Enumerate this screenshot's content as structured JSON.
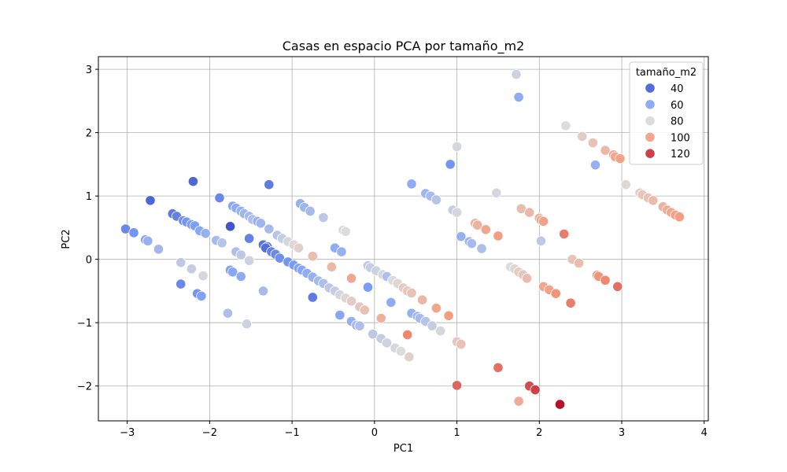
{
  "chart_data": {
    "type": "scatter",
    "title": "Casas en espacio PCA por tamaño_m2",
    "xlabel": "PC1",
    "ylabel": "PC2",
    "xlim": [
      -3.35,
      4.05
    ],
    "ylim": [
      -2.55,
      3.2
    ],
    "xticks": [
      -3,
      -2,
      -1,
      0,
      1,
      2,
      3,
      4
    ],
    "yticks": [
      -2,
      -1,
      0,
      1,
      2,
      3
    ],
    "xtick_labels": [
      "−3",
      "−2",
      "−1",
      "0",
      "1",
      "2",
      "3",
      "4"
    ],
    "ytick_labels": [
      "−2",
      "−1",
      "0",
      "1",
      "2",
      "3"
    ],
    "grid": true,
    "hue_variable": "tamaño_m2",
    "colormap": "coolwarm",
    "hue_range": [
      30,
      130
    ],
    "legend": {
      "title": "tamaño_m2",
      "placement": "upper right",
      "entries": [
        {
          "label": "40",
          "value": 40
        },
        {
          "label": "60",
          "value": 60
        },
        {
          "label": "80",
          "value": 80
        },
        {
          "label": "100",
          "value": 100
        },
        {
          "label": "120",
          "value": 120
        }
      ]
    },
    "points": [
      {
        "x": -3.02,
        "y": 0.48,
        "size_m2": 48
      },
      {
        "x": -2.92,
        "y": 0.42,
        "size_m2": 52
      },
      {
        "x": -2.78,
        "y": 0.31,
        "size_m2": 58
      },
      {
        "x": -2.75,
        "y": 0.29,
        "size_m2": 62
      },
      {
        "x": -2.72,
        "y": 0.93,
        "size_m2": 38
      },
      {
        "x": -2.62,
        "y": 0.16,
        "size_m2": 65
      },
      {
        "x": -2.45,
        "y": 0.72,
        "size_m2": 44
      },
      {
        "x": -2.4,
        "y": 0.68,
        "size_m2": 46
      },
      {
        "x": -2.32,
        "y": 0.61,
        "size_m2": 50
      },
      {
        "x": -2.28,
        "y": 0.59,
        "size_m2": 52
      },
      {
        "x": -2.22,
        "y": 0.55,
        "size_m2": 54
      },
      {
        "x": -2.18,
        "y": 0.53,
        "size_m2": 55
      },
      {
        "x": -2.2,
        "y": 1.23,
        "size_m2": 38
      },
      {
        "x": -2.12,
        "y": 0.45,
        "size_m2": 58
      },
      {
        "x": -2.05,
        "y": 0.41,
        "size_m2": 62
      },
      {
        "x": -2.35,
        "y": -0.05,
        "size_m2": 72
      },
      {
        "x": -2.22,
        "y": -0.15,
        "size_m2": 74
      },
      {
        "x": -2.08,
        "y": -0.26,
        "size_m2": 78
      },
      {
        "x": -2.35,
        "y": -0.39,
        "size_m2": 48
      },
      {
        "x": -2.15,
        "y": -0.54,
        "size_m2": 52
      },
      {
        "x": -2.1,
        "y": -0.58,
        "size_m2": 56
      },
      {
        "x": -1.92,
        "y": 0.3,
        "size_m2": 66
      },
      {
        "x": -1.88,
        "y": 0.97,
        "size_m2": 48
      },
      {
        "x": -1.85,
        "y": 0.26,
        "size_m2": 70
      },
      {
        "x": -1.75,
        "y": 0.52,
        "size_m2": 33
      },
      {
        "x": -1.72,
        "y": 0.84,
        "size_m2": 58
      },
      {
        "x": -1.68,
        "y": 0.81,
        "size_m2": 60
      },
      {
        "x": -1.62,
        "y": 0.76,
        "size_m2": 62
      },
      {
        "x": -1.58,
        "y": 0.72,
        "size_m2": 64
      },
      {
        "x": -1.52,
        "y": 0.68,
        "size_m2": 66
      },
      {
        "x": -1.48,
        "y": 0.63,
        "size_m2": 68
      },
      {
        "x": -1.42,
        "y": 0.6,
        "size_m2": 62
      },
      {
        "x": -1.38,
        "y": 0.57,
        "size_m2": 64
      },
      {
        "x": -1.28,
        "y": 1.18,
        "size_m2": 44
      },
      {
        "x": -1.28,
        "y": 0.48,
        "size_m2": 66
      },
      {
        "x": -1.18,
        "y": 0.38,
        "size_m2": 70
      },
      {
        "x": -1.12,
        "y": 0.33,
        "size_m2": 74
      },
      {
        "x": -1.05,
        "y": 0.28,
        "size_m2": 78
      },
      {
        "x": -0.98,
        "y": 0.23,
        "size_m2": 82
      },
      {
        "x": -0.92,
        "y": 0.18,
        "size_m2": 84
      },
      {
        "x": -1.68,
        "y": 0.12,
        "size_m2": 68
      },
      {
        "x": -1.62,
        "y": 0.07,
        "size_m2": 72
      },
      {
        "x": -1.52,
        "y": -0.02,
        "size_m2": 76
      },
      {
        "x": -1.75,
        "y": -0.17,
        "size_m2": 56
      },
      {
        "x": -1.72,
        "y": -0.2,
        "size_m2": 58
      },
      {
        "x": -1.62,
        "y": -0.27,
        "size_m2": 60
      },
      {
        "x": -1.52,
        "y": 0.33,
        "size_m2": 46
      },
      {
        "x": -1.35,
        "y": 0.23,
        "size_m2": 42
      },
      {
        "x": -1.3,
        "y": 0.2,
        "size_m2": 44
      },
      {
        "x": -1.32,
        "y": 0.18,
        "size_m2": 40
      },
      {
        "x": -1.25,
        "y": 0.12,
        "size_m2": 46
      },
      {
        "x": -1.2,
        "y": 0.08,
        "size_m2": 48
      },
      {
        "x": -1.15,
        "y": 0.02,
        "size_m2": 50
      },
      {
        "x": -1.05,
        "y": -0.04,
        "size_m2": 52
      },
      {
        "x": -0.98,
        "y": -0.09,
        "size_m2": 54
      },
      {
        "x": -0.92,
        "y": -0.14,
        "size_m2": 56
      },
      {
        "x": -0.88,
        "y": -0.17,
        "size_m2": 58
      },
      {
        "x": -0.82,
        "y": -0.22,
        "size_m2": 60
      },
      {
        "x": -0.75,
        "y": -0.28,
        "size_m2": 62
      },
      {
        "x": -0.68,
        "y": -0.34,
        "size_m2": 66
      },
      {
        "x": -0.62,
        "y": -0.38,
        "size_m2": 68
      },
      {
        "x": -0.55,
        "y": -0.45,
        "size_m2": 72
      },
      {
        "x": -0.48,
        "y": -0.5,
        "size_m2": 74
      },
      {
        "x": -0.42,
        "y": -0.56,
        "size_m2": 78
      },
      {
        "x": -0.35,
        "y": -0.61,
        "size_m2": 82
      },
      {
        "x": -0.28,
        "y": -0.66,
        "size_m2": 86
      },
      {
        "x": -0.18,
        "y": -0.75,
        "size_m2": 88
      },
      {
        "x": -0.12,
        "y": -0.8,
        "size_m2": 90
      },
      {
        "x": -0.9,
        "y": 0.88,
        "size_m2": 62
      },
      {
        "x": -0.85,
        "y": 0.82,
        "size_m2": 64
      },
      {
        "x": -0.78,
        "y": 0.76,
        "size_m2": 66
      },
      {
        "x": -0.62,
        "y": 0.66,
        "size_m2": 72
      },
      {
        "x": -0.75,
        "y": 0.05,
        "size_m2": 92
      },
      {
        "x": -1.35,
        "y": -0.5,
        "size_m2": 66
      },
      {
        "x": -1.78,
        "y": -0.85,
        "size_m2": 68
      },
      {
        "x": -1.55,
        "y": -1.02,
        "size_m2": 76
      },
      {
        "x": -0.75,
        "y": -0.6,
        "size_m2": 44
      },
      {
        "x": -0.38,
        "y": 0.46,
        "size_m2": 78
      },
      {
        "x": -0.35,
        "y": 0.44,
        "size_m2": 80
      },
      {
        "x": -0.48,
        "y": 0.18,
        "size_m2": 60
      },
      {
        "x": -0.4,
        "y": 0.12,
        "size_m2": 62
      },
      {
        "x": -0.52,
        "y": -0.12,
        "size_m2": 94
      },
      {
        "x": -0.28,
        "y": -0.3,
        "size_m2": 100
      },
      {
        "x": -0.42,
        "y": -0.88,
        "size_m2": 58
      },
      {
        "x": -0.28,
        "y": -0.98,
        "size_m2": 62
      },
      {
        "x": -0.22,
        "y": -1.04,
        "size_m2": 66
      },
      {
        "x": -0.18,
        "y": -1.05,
        "size_m2": 68
      },
      {
        "x": -0.08,
        "y": -0.1,
        "size_m2": 72
      },
      {
        "x": -0.05,
        "y": -0.13,
        "size_m2": 74
      },
      {
        "x": 0.02,
        "y": -0.18,
        "size_m2": 76
      },
      {
        "x": 0.1,
        "y": -0.24,
        "size_m2": 78
      },
      {
        "x": 0.15,
        "y": -0.27,
        "size_m2": 68
      },
      {
        "x": 0.22,
        "y": -0.33,
        "size_m2": 80
      },
      {
        "x": 0.28,
        "y": -0.38,
        "size_m2": 82
      },
      {
        "x": 0.35,
        "y": -0.45,
        "size_m2": 86
      },
      {
        "x": 0.4,
        "y": -0.5,
        "size_m2": 88
      },
      {
        "x": 0.45,
        "y": -0.53,
        "size_m2": 90
      },
      {
        "x": 0.58,
        "y": -0.64,
        "size_m2": 94
      },
      {
        "x": 0.75,
        "y": -0.77,
        "size_m2": 100
      },
      {
        "x": 0.9,
        "y": -0.89,
        "size_m2": 104
      },
      {
        "x": -0.08,
        "y": -0.44,
        "size_m2": 54
      },
      {
        "x": 0.2,
        "y": -0.68,
        "size_m2": 60
      },
      {
        "x": -0.02,
        "y": -1.18,
        "size_m2": 72
      },
      {
        "x": 0.08,
        "y": -1.25,
        "size_m2": 74
      },
      {
        "x": 0.15,
        "y": -1.32,
        "size_m2": 76
      },
      {
        "x": 0.25,
        "y": -1.4,
        "size_m2": 78
      },
      {
        "x": 0.32,
        "y": -1.45,
        "size_m2": 80
      },
      {
        "x": 0.42,
        "y": -1.54,
        "size_m2": 84
      },
      {
        "x": 0.08,
        "y": -0.93,
        "size_m2": 96
      },
      {
        "x": 0.4,
        "y": -1.19,
        "size_m2": 108
      },
      {
        "x": 0.45,
        "y": -0.85,
        "size_m2": 62
      },
      {
        "x": 0.52,
        "y": -0.9,
        "size_m2": 64
      },
      {
        "x": 0.55,
        "y": -0.93,
        "size_m2": 66
      },
      {
        "x": 0.62,
        "y": -0.98,
        "size_m2": 70
      },
      {
        "x": 0.7,
        "y": -1.05,
        "size_m2": 74
      },
      {
        "x": 0.8,
        "y": -1.13,
        "size_m2": 78
      },
      {
        "x": 0.45,
        "y": 1.19,
        "size_m2": 60
      },
      {
        "x": 0.62,
        "y": 1.04,
        "size_m2": 64
      },
      {
        "x": 0.68,
        "y": 1.0,
        "size_m2": 66
      },
      {
        "x": 0.75,
        "y": 0.94,
        "size_m2": 70
      },
      {
        "x": 0.92,
        "y": 1.5,
        "size_m2": 52
      },
      {
        "x": 0.95,
        "y": 0.78,
        "size_m2": 74
      },
      {
        "x": 1.0,
        "y": 0.74,
        "size_m2": 78
      },
      {
        "x": 1.0,
        "y": 1.78,
        "size_m2": 78
      },
      {
        "x": 1.05,
        "y": 0.36,
        "size_m2": 62
      },
      {
        "x": 1.15,
        "y": 0.28,
        "size_m2": 64
      },
      {
        "x": 1.18,
        "y": 0.25,
        "size_m2": 66
      },
      {
        "x": 1.3,
        "y": 0.17,
        "size_m2": 68
      },
      {
        "x": 1.22,
        "y": 0.57,
        "size_m2": 94
      },
      {
        "x": 1.25,
        "y": 0.54,
        "size_m2": 96
      },
      {
        "x": 1.35,
        "y": 0.47,
        "size_m2": 100
      },
      {
        "x": 1.48,
        "y": 1.05,
        "size_m2": 78
      },
      {
        "x": 1.5,
        "y": 0.37,
        "size_m2": 104
      },
      {
        "x": 1.0,
        "y": -1.3,
        "size_m2": 88
      },
      {
        "x": 1.05,
        "y": -1.34,
        "size_m2": 90
      },
      {
        "x": 1.0,
        "y": -1.99,
        "size_m2": 114
      },
      {
        "x": 1.5,
        "y": -1.71,
        "size_m2": 112
      },
      {
        "x": 1.65,
        "y": -0.12,
        "size_m2": 80
      },
      {
        "x": 1.7,
        "y": -0.15,
        "size_m2": 82
      },
      {
        "x": 1.75,
        "y": -0.2,
        "size_m2": 86
      },
      {
        "x": 1.8,
        "y": -0.24,
        "size_m2": 88
      },
      {
        "x": 1.85,
        "y": -0.3,
        "size_m2": 92
      },
      {
        "x": 1.78,
        "y": 0.8,
        "size_m2": 92
      },
      {
        "x": 1.88,
        "y": 0.74,
        "size_m2": 94
      },
      {
        "x": 2.0,
        "y": 0.65,
        "size_m2": 98
      },
      {
        "x": 2.02,
        "y": 0.62,
        "size_m2": 100
      },
      {
        "x": 2.05,
        "y": 0.6,
        "size_m2": 102
      },
      {
        "x": 1.72,
        "y": 2.92,
        "size_m2": 76
      },
      {
        "x": 1.75,
        "y": 2.56,
        "size_m2": 60
      },
      {
        "x": 2.02,
        "y": 0.29,
        "size_m2": 72
      },
      {
        "x": 2.05,
        "y": -0.43,
        "size_m2": 100
      },
      {
        "x": 2.12,
        "y": -0.48,
        "size_m2": 102
      },
      {
        "x": 2.2,
        "y": -0.54,
        "size_m2": 106
      },
      {
        "x": 2.3,
        "y": 0.4,
        "size_m2": 110
      },
      {
        "x": 2.38,
        "y": -0.69,
        "size_m2": 110
      },
      {
        "x": 1.88,
        "y": -2.0,
        "size_m2": 118
      },
      {
        "x": 1.95,
        "y": -2.06,
        "size_m2": 120
      },
      {
        "x": 1.75,
        "y": -2.24,
        "size_m2": 98
      },
      {
        "x": 2.25,
        "y": -2.29,
        "size_m2": 128
      },
      {
        "x": 2.32,
        "y": 2.11,
        "size_m2": 80
      },
      {
        "x": 2.4,
        "y": 0.0,
        "size_m2": 90
      },
      {
        "x": 2.48,
        "y": -0.06,
        "size_m2": 92
      },
      {
        "x": 2.52,
        "y": 1.94,
        "size_m2": 86
      },
      {
        "x": 2.65,
        "y": 1.84,
        "size_m2": 90
      },
      {
        "x": 2.68,
        "y": 1.49,
        "size_m2": 62
      },
      {
        "x": 2.7,
        "y": -0.25,
        "size_m2": 104
      },
      {
        "x": 2.72,
        "y": -0.27,
        "size_m2": 106
      },
      {
        "x": 2.8,
        "y": -0.33,
        "size_m2": 108
      },
      {
        "x": 2.8,
        "y": 1.72,
        "size_m2": 94
      },
      {
        "x": 2.9,
        "y": 1.65,
        "size_m2": 98
      },
      {
        "x": 2.92,
        "y": 1.62,
        "size_m2": 100
      },
      {
        "x": 2.95,
        "y": -0.43,
        "size_m2": 112
      },
      {
        "x": 2.98,
        "y": 1.59,
        "size_m2": 102
      },
      {
        "x": 3.05,
        "y": 1.18,
        "size_m2": 82
      },
      {
        "x": 3.22,
        "y": 1.05,
        "size_m2": 86
      },
      {
        "x": 3.25,
        "y": 1.02,
        "size_m2": 88
      },
      {
        "x": 3.32,
        "y": 0.97,
        "size_m2": 90
      },
      {
        "x": 3.38,
        "y": 0.93,
        "size_m2": 92
      },
      {
        "x": 3.5,
        "y": 0.83,
        "size_m2": 96
      },
      {
        "x": 3.55,
        "y": 0.78,
        "size_m2": 98
      },
      {
        "x": 3.6,
        "y": 0.74,
        "size_m2": 100
      },
      {
        "x": 3.65,
        "y": 0.7,
        "size_m2": 102
      },
      {
        "x": 3.7,
        "y": 0.67,
        "size_m2": 104
      }
    ]
  }
}
